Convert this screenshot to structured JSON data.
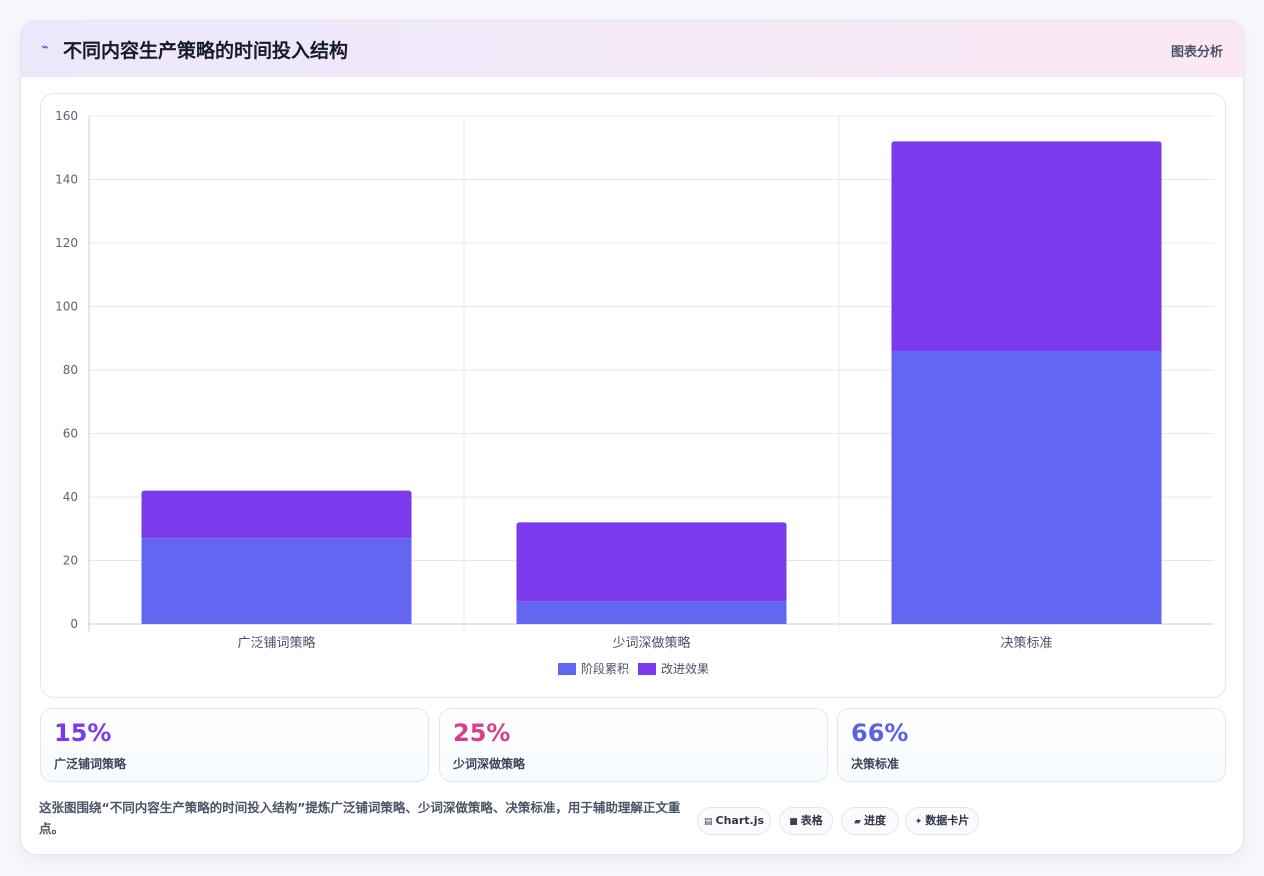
{
  "header": {
    "icon": "chart-line-icon",
    "title": "不同内容生产策略的时间投入结构",
    "right_label": "图表分析"
  },
  "chart_data": {
    "type": "bar",
    "stacked": true,
    "categories": [
      "广泛铺词策略",
      "少词深做策略",
      "决策标准"
    ],
    "series": [
      {
        "name": "阶段累积",
        "values": [
          27,
          7,
          86
        ],
        "color": "#6366f1"
      },
      {
        "name": "改进效果",
        "values": [
          15,
          25,
          66
        ],
        "color": "#7c3aed"
      }
    ],
    "ylim": [
      0,
      160
    ],
    "yticks": [
      0,
      20,
      40,
      60,
      80,
      100,
      120,
      140,
      160
    ],
    "grid": true,
    "legend": "bottom"
  },
  "stats": [
    {
      "value": "15%",
      "label": "广泛铺词策略",
      "color": "#7c3aed"
    },
    {
      "value": "25%",
      "label": "少词深做策略",
      "color": "#db3d8e"
    },
    {
      "value": "66%",
      "label": "决策标准",
      "color": "#5b61e6"
    }
  ],
  "description": "这张图围绕“不同内容生产策略的时间投入结构”提炼广泛铺词策略、少词深做策略、决策标准，用于辅助理解正文重点。",
  "tags": [
    {
      "icon": "▤",
      "label": "Chart.js"
    },
    {
      "icon": "■",
      "label": "表格"
    },
    {
      "icon": "▰",
      "label": "进度"
    },
    {
      "icon": "✦",
      "label": "数据卡片"
    }
  ]
}
